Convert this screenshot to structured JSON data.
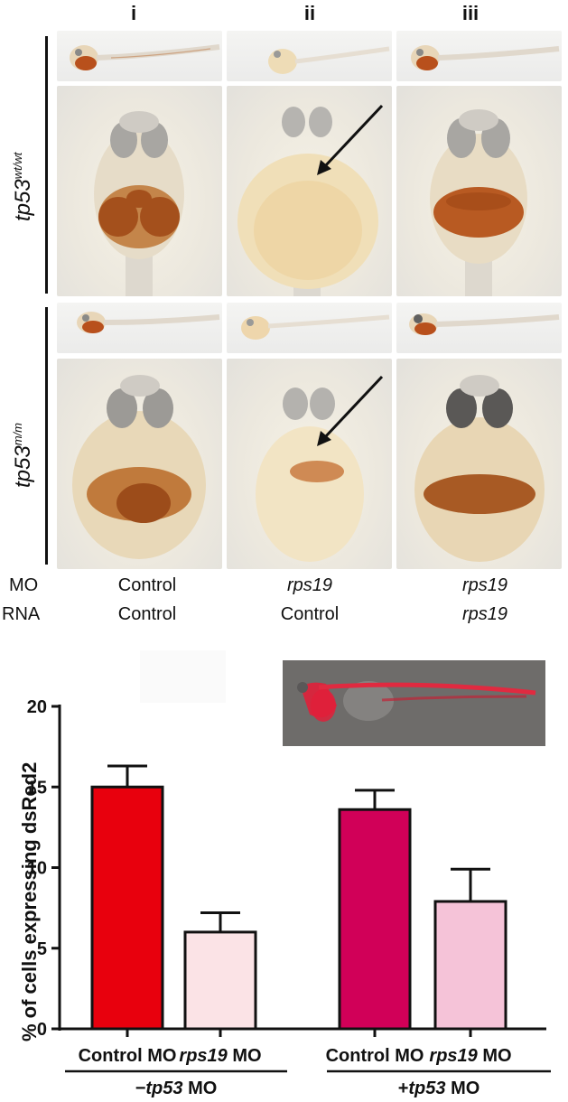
{
  "figure": {
    "columns": [
      "i",
      "ii",
      "iii"
    ],
    "rows": [
      {
        "base": "tp53",
        "superscript": "wt/wt"
      },
      {
        "base": "tp53",
        "superscript": "m/m"
      }
    ],
    "condition_labels": {
      "mo": "MO",
      "rna": "RNA"
    },
    "conditions": [
      {
        "mo": "Control",
        "rna": "Control",
        "mo_italic": false,
        "rna_italic": false
      },
      {
        "mo": "rps19",
        "rna": "Control",
        "mo_italic": true,
        "rna_italic": false
      },
      {
        "mo": "rps19",
        "rna": "rps19",
        "mo_italic": true,
        "rna_italic": true
      }
    ]
  },
  "chart_data": {
    "type": "bar",
    "ylabel": "% of cells expressing dsRed2",
    "ylim": [
      0,
      20
    ],
    "yticks": [
      "0",
      "5",
      "10",
      "15",
      "20"
    ],
    "categories": [
      {
        "pre": "",
        "italic": "",
        "post": "Control MO"
      },
      {
        "pre": "",
        "italic": "rps19",
        "post": " MO"
      },
      {
        "pre": "",
        "italic": "",
        "post": "Control MO"
      },
      {
        "pre": "",
        "italic": "rps19",
        "post": " MO"
      }
    ],
    "values": [
      15.0,
      6.0,
      13.6,
      7.9
    ],
    "errors": [
      1.3,
      1.2,
      1.2,
      2.0
    ],
    "colors": [
      "#e8000d",
      "#fbe3e6",
      "#d10058",
      "#f5c3d8"
    ],
    "groups": [
      {
        "pre": "−",
        "italic": "tp53",
        "post": " MO",
        "span": [
          0,
          1
        ]
      },
      {
        "pre": "+",
        "italic": "tp53",
        "post": " MO",
        "span": [
          2,
          3
        ]
      }
    ],
    "grid": false,
    "inset": "fluorescent-embryo"
  }
}
